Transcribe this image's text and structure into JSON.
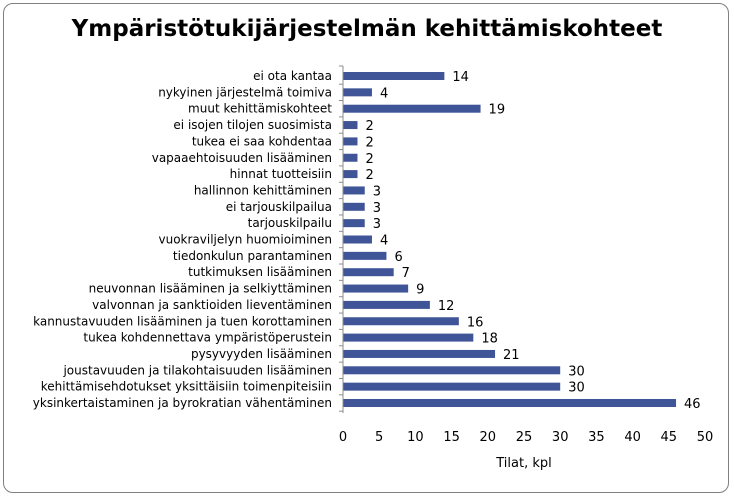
{
  "chart_data": {
    "type": "bar",
    "orientation": "horizontal",
    "title": "Ympäristötukijärjestelmän kehittämiskohteet",
    "xlabel": "Tilat, kpl",
    "ylabel": "",
    "xlim": [
      0,
      50
    ],
    "ticks": [
      0,
      5,
      10,
      15,
      20,
      25,
      30,
      35,
      40,
      45,
      50
    ],
    "grid": false,
    "bar_color": "#3f5597",
    "categories": [
      "ei ota kantaa",
      "nykyinen järjestelmä toimiva",
      "muut kehittämiskohteet",
      "ei isojen tilojen suosimista",
      "tukea ei saa kohdentaa",
      "vapaaehtoisuuden lisääminen",
      "hinnat tuotteisiin",
      "hallinnon kehittäminen",
      "ei tarjouskilpailua",
      "tarjouskilpailu",
      "vuokraviljelyn huomioiminen",
      "tiedonkulun parantaminen",
      "tutkimuksen lisääminen",
      "neuvonnan lisääminen ja selkiyttäminen",
      "valvonnan ja sanktioiden lieventäminen",
      "kannustavuuden lisääminen ja tuen korottaminen",
      "tukea kohdennettava ympäristöperustein",
      "pysyvyyden lisääminen",
      "joustavuuden ja tilakohtaisuuden lisääminen",
      "kehittämisehdotukset yksittäisiin toimenpiteisiin",
      "yksinkertaistaminen ja byrokratian vähentäminen"
    ],
    "values": [
      14,
      4,
      19,
      2,
      2,
      2,
      2,
      3,
      3,
      3,
      4,
      6,
      7,
      9,
      12,
      16,
      18,
      21,
      30,
      30,
      46
    ]
  }
}
